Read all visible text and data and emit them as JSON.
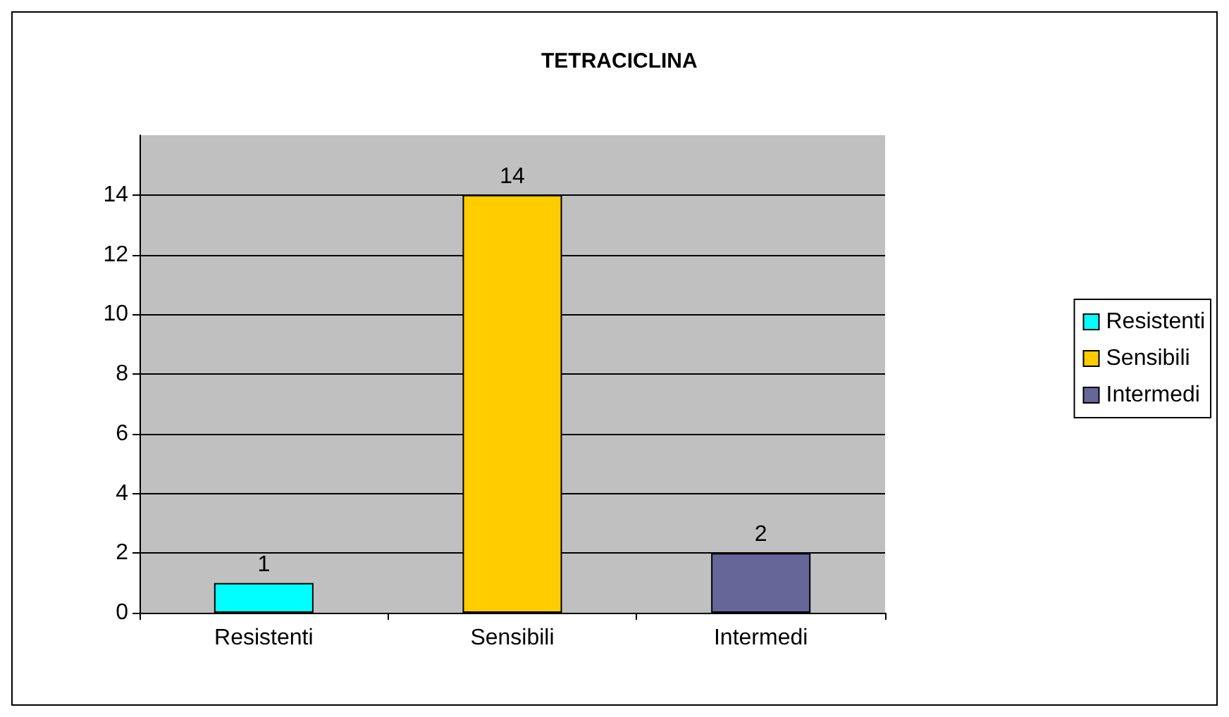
{
  "chart_data": {
    "type": "bar",
    "title": "TETRACICLINA",
    "categories": [
      "Resistenti",
      "Sensibili",
      "Intermedi"
    ],
    "series": [
      {
        "name": "Resistenti",
        "color": "#00ffff",
        "values": [
          1,
          null,
          null
        ]
      },
      {
        "name": "Sensibili",
        "color": "#ffcc00",
        "values": [
          null,
          14,
          null
        ]
      },
      {
        "name": "Intermedi",
        "color": "#666699",
        "values": [
          null,
          null,
          2
        ]
      }
    ],
    "stacked": true,
    "ylim": [
      0,
      16
    ],
    "yticks": [
      0,
      2,
      4,
      6,
      8,
      10,
      12,
      14
    ],
    "grid": "y",
    "legend": "right",
    "data_labels": true
  }
}
